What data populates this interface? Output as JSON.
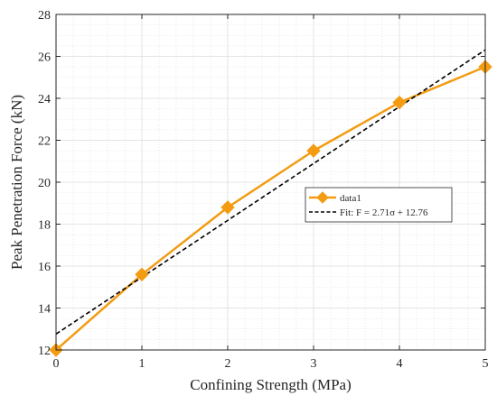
{
  "chart_data": {
    "type": "line",
    "title": "",
    "xlabel": "Confining Strength (MPa)",
    "ylabel": "Peak Penetration Force (kN)",
    "xlim": [
      0,
      5
    ],
    "ylim": [
      12,
      28
    ],
    "xticks": [
      0,
      1,
      2,
      3,
      4,
      5
    ],
    "yticks": [
      12,
      14,
      16,
      18,
      20,
      22,
      24,
      26,
      28
    ],
    "grid": true,
    "minor_grid": true,
    "legend_position": "center-right",
    "series": [
      {
        "name": "data1",
        "style": "solid-line-diamond-markers",
        "color": "#f39c12",
        "x": [
          0,
          1,
          2,
          3,
          4,
          5
        ],
        "y": [
          12.0,
          15.6,
          18.8,
          21.5,
          23.8,
          25.5
        ]
      },
      {
        "name": "Fit: F = 2.71σ + 12.76",
        "style": "dashed-line",
        "color": "#000000",
        "x": [
          0,
          5
        ],
        "y": [
          12.76,
          26.31
        ]
      }
    ]
  }
}
